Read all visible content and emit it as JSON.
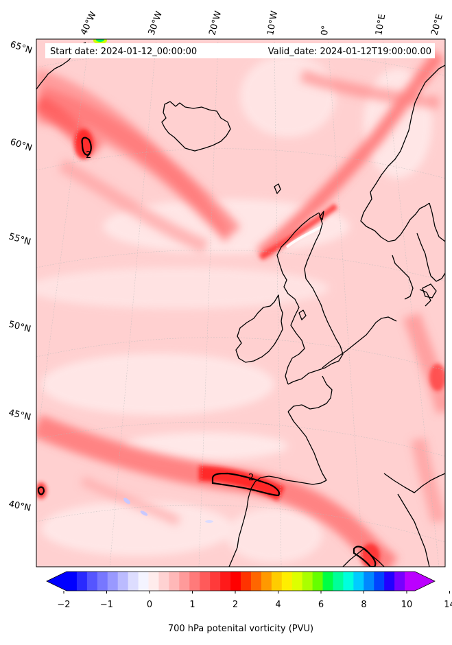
{
  "header": {
    "start_date": "Start date: 2024-01-12_00:00:00",
    "valid_date": "Valid_date: 2024-01-12T19:00:00.00"
  },
  "map": {
    "projection": "lambert-conformal",
    "region": "North Atlantic / Western Europe",
    "lon_labels": [
      "40°W",
      "30°W",
      "20°W",
      "10°W",
      "0°",
      "10°E",
      "20°E"
    ],
    "lat_labels": [
      "65°N",
      "60°N",
      "55°N",
      "50°N",
      "45°N",
      "40°N"
    ],
    "contour_labels": [
      "2",
      "2"
    ],
    "field": "700 hPa potential vorticity"
  },
  "colorbar": {
    "label": "700 hPa potenital vorticity (PVU)",
    "ticks": [
      "−2",
      "−1",
      "0",
      "1",
      "2",
      "4",
      "6",
      "8",
      "10",
      "14"
    ],
    "colors": [
      "#0000ff",
      "#2a2aff",
      "#5555ff",
      "#7777ff",
      "#9999ff",
      "#bbbbff",
      "#ddddff",
      "#f4f4ff",
      "#ffecec",
      "#ffd2d2",
      "#ffb8b8",
      "#ff9a9a",
      "#ff7a7a",
      "#ff5a5a",
      "#ff3a3a",
      "#ff1a1a",
      "#ff0000",
      "#ff3300",
      "#ff6600",
      "#ff9900",
      "#ffcc00",
      "#ffee00",
      "#ddff00",
      "#aaff00",
      "#66ff00",
      "#00ff44",
      "#00ff99",
      "#00ffdd",
      "#00ccff",
      "#0088ff",
      "#0044ff",
      "#2200ff",
      "#7700ff",
      "#bb00ff"
    ],
    "extend_low_color": "#0000ff",
    "extend_high_color": "#bb00ff"
  }
}
